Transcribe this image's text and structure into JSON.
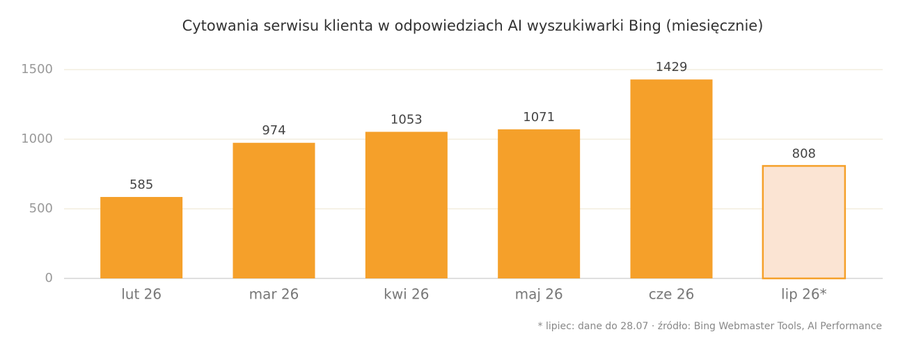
{
  "chart_data": {
    "type": "bar",
    "title": "Cytowania serwisu klienta w odpowiedziach AI wyszukiwarki Bing (miesięcznie)",
    "categories": [
      "lut 26",
      "mar 26",
      "kwi 26",
      "maj 26",
      "cze 26",
      "lip 26*"
    ],
    "values": [
      585,
      974,
      1053,
      1071,
      1429,
      808
    ],
    "colors": [
      "#f5a02a",
      "#f5a02a",
      "#f5a02a",
      "#f5a02a",
      "#f5a02a",
      "#fbe4d3"
    ],
    "edgecolor": "#f5a02a",
    "ylim": [
      0,
      1500
    ],
    "yticks": [
      0,
      500,
      1000,
      1500
    ],
    "grid": true,
    "footnote": "* lipiec: dane do 28.07  ·  źródło: Bing Webmaster Tools, AI Performance"
  }
}
